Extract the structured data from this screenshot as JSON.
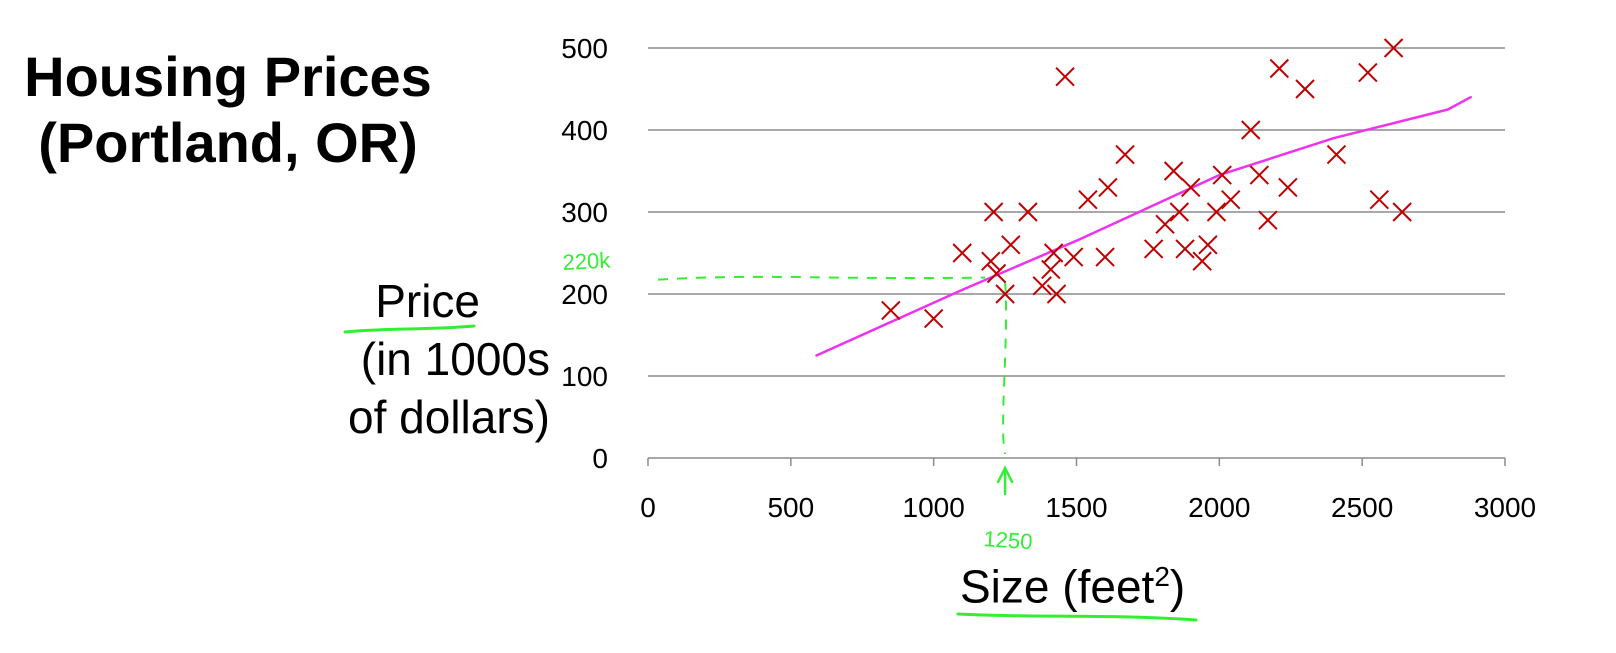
{
  "title": {
    "line1": "Housing Prices",
    "line2": "(Portland, OR)"
  },
  "chart_data": {
    "type": "scatter",
    "title": "Housing Prices (Portland, OR)",
    "xlabel": "Size (feet2)",
    "xlabel_text": "Size (feet",
    "xlabel_sup": "2",
    "xlabel_close": ")",
    "ylabel_lines": [
      "Price",
      "(in 1000s",
      "of dollars)"
    ],
    "xlim": [
      0,
      3000
    ],
    "ylim": [
      0,
      500
    ],
    "x_ticks": [
      0,
      500,
      1000,
      1500,
      2000,
      2500,
      3000
    ],
    "y_ticks": [
      0,
      100,
      200,
      300,
      400,
      500
    ],
    "grid": "horizontal",
    "series": [
      {
        "name": "Houses",
        "marker": "x",
        "color": "#c00000",
        "points": [
          [
            850,
            180
          ],
          [
            1000,
            170
          ],
          [
            1100,
            250
          ],
          [
            1200,
            240
          ],
          [
            1210,
            300
          ],
          [
            1220,
            225
          ],
          [
            1250,
            200
          ],
          [
            1270,
            260
          ],
          [
            1330,
            300
          ],
          [
            1380,
            210
          ],
          [
            1410,
            230
          ],
          [
            1420,
            250
          ],
          [
            1430,
            200
          ],
          [
            1460,
            465
          ],
          [
            1490,
            245
          ],
          [
            1540,
            315
          ],
          [
            1600,
            245
          ],
          [
            1610,
            330
          ],
          [
            1670,
            370
          ],
          [
            1770,
            255
          ],
          [
            1810,
            285
          ],
          [
            1840,
            350
          ],
          [
            1860,
            300
          ],
          [
            1880,
            255
          ],
          [
            1900,
            330
          ],
          [
            1940,
            240
          ],
          [
            1960,
            260
          ],
          [
            1990,
            300
          ],
          [
            2010,
            345
          ],
          [
            2040,
            315
          ],
          [
            2110,
            400
          ],
          [
            2140,
            345
          ],
          [
            2170,
            290
          ],
          [
            2210,
            475
          ],
          [
            2240,
            330
          ],
          [
            2300,
            450
          ],
          [
            2410,
            370
          ],
          [
            2520,
            470
          ],
          [
            2560,
            315
          ],
          [
            2610,
            500
          ],
          [
            2640,
            300
          ]
        ]
      },
      {
        "name": "Fitted line",
        "type": "line",
        "color": "#ee33ee",
        "points": [
          [
            590,
            125
          ],
          [
            1100,
            205
          ],
          [
            1500,
            265
          ],
          [
            2000,
            345
          ],
          [
            2400,
            390
          ],
          [
            2800,
            425
          ],
          [
            2880,
            440
          ]
        ]
      }
    ],
    "annotations": [
      {
        "text": "220k",
        "color": "#33ee33",
        "x": 0,
        "y": 220
      },
      {
        "text": "1250",
        "color": "#33ee33",
        "x": 1250,
        "y": 0
      }
    ]
  }
}
